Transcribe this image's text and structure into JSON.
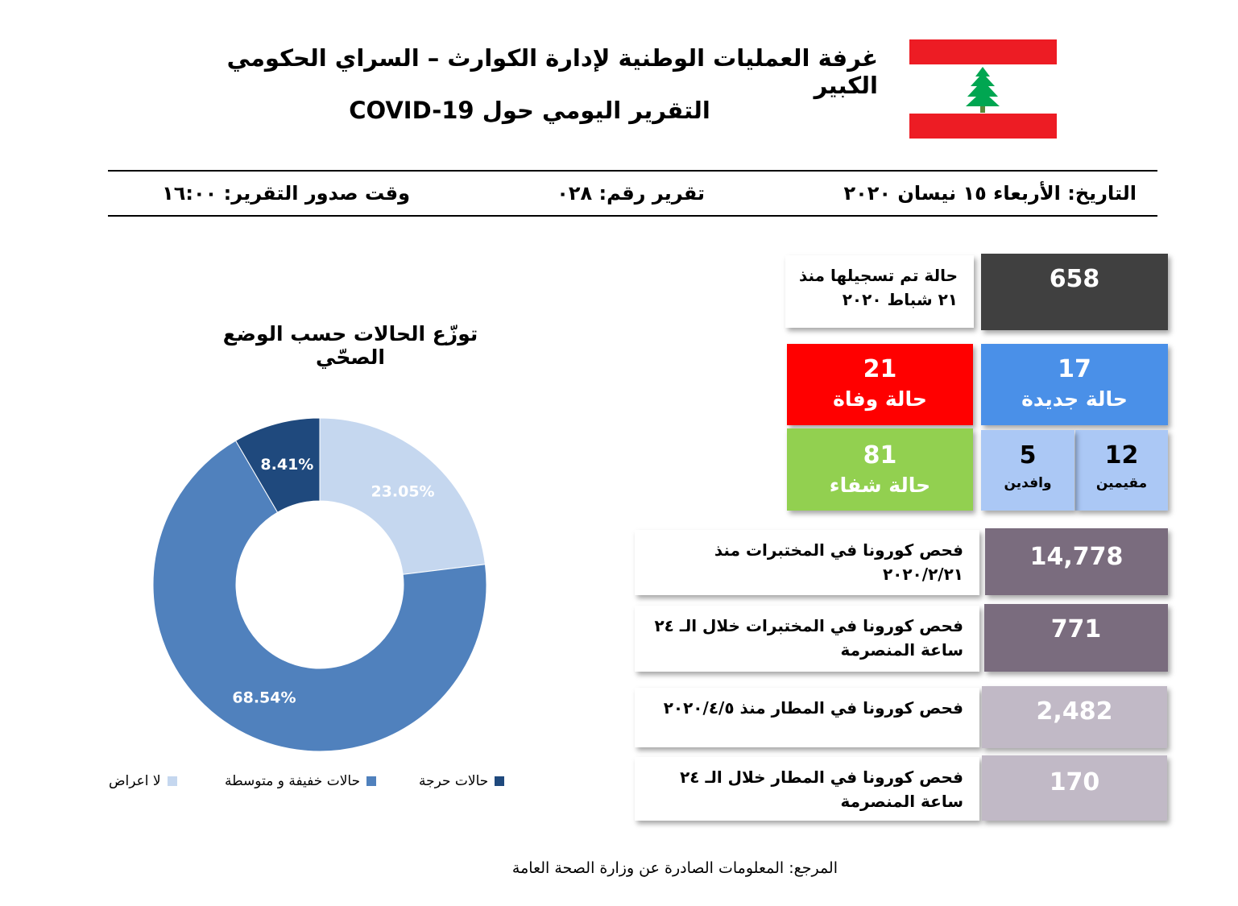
{
  "header": {
    "title": "غرفة العمليات الوطنية لإدارة الكوارث – السراي الحكومي الكبير",
    "subtitle": "التقرير اليومي حول COVID-19",
    "flag_colors": {
      "red": "#ED1C24",
      "white": "#FFFFFF",
      "cedar": "#00A651"
    }
  },
  "meta": {
    "date": "التاريخ: الأربعاء ١٥ نيسان ٢٠٢٠",
    "report_number": "تقرير رقم: ٠٢٨",
    "issue_time": "وقت صدور التقرير: ١٦:٠٠"
  },
  "stats": {
    "total": {
      "value": "658",
      "label_line1": "حالة تم تسجيلها منذ",
      "label_line2": "٢١ شباط ٢٠٢٠",
      "color": "#404040"
    },
    "new_cases": {
      "value": "17",
      "label": "حالة جديدة",
      "color": "#4A90E8"
    },
    "deaths": {
      "value": "21",
      "label": "حالة وفاة",
      "color": "#FF0000"
    },
    "recovered": {
      "value": "81",
      "label": "حالة شفاء",
      "color": "#92D050"
    },
    "residents": {
      "value": "12",
      "label": "مقيمين",
      "color": "#ABC8F5"
    },
    "arrivals": {
      "value": "5",
      "label": "وافدين",
      "color": "#ABC8F5"
    },
    "lab_tests_total": {
      "value": "14,778",
      "label_line1": "فحص كورونا في المختبرات منذ",
      "label_line2": "٢٠٢٠/٢/٢١",
      "color": "#7A6C7E"
    },
    "lab_tests_24h": {
      "value": "771",
      "label_line1": "فحص كورونا في المختبرات خلال الـ ٢٤",
      "label_line2": "ساعة المنصرمة",
      "color": "#7A6C7E"
    },
    "airport_tests_total": {
      "value": "2,482",
      "label_line1": "فحص كورونا في المطار منذ ٢٠٢٠/٤/٥",
      "color": "#C1B9C6"
    },
    "airport_tests_24h": {
      "value": "170",
      "label_line1": "فحص كورونا في المطار خلال الـ ٢٤",
      "label_line2": "ساعة المنصرمة",
      "color": "#C1B9C6"
    }
  },
  "chart_data": {
    "type": "pie",
    "title": "توزّع الحالات حسب الوضع الصحّي",
    "categories": [
      "لا اعراض",
      "حالات خفيفة و متوسطة",
      "حالات حرجة"
    ],
    "values": [
      23.05,
      68.54,
      8.41
    ],
    "value_labels": [
      "23.05%",
      "68.54%",
      "8.41%"
    ],
    "colors": [
      "#C5D7EF",
      "#5081BD",
      "#1F497D"
    ],
    "donut": true,
    "legend_position": "bottom"
  },
  "footer": {
    "source": "المرجع: المعلومات الصادرة عن وزارة الصحة العامة"
  }
}
